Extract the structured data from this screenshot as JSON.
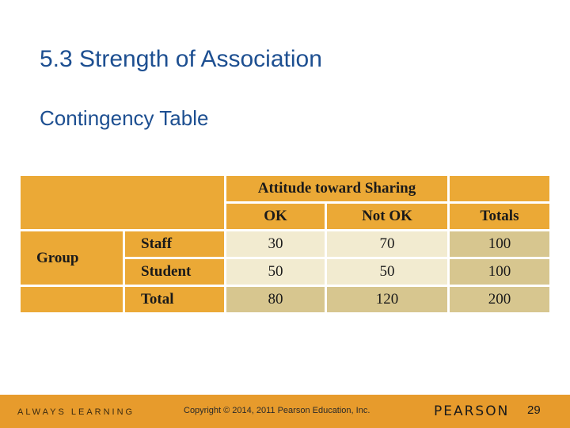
{
  "slide": {
    "title": "5.3 Strength of Association",
    "subtitle": "Contingency Table"
  },
  "table": {
    "spanning_header": "Attitude toward Sharing",
    "columns": [
      "OK",
      "Not OK",
      "Totals"
    ],
    "group_label": "Group",
    "rows": [
      {
        "label": "Staff",
        "values": [
          "30",
          "70",
          "100"
        ]
      },
      {
        "label": "Student",
        "values": [
          "50",
          "50",
          "100"
        ]
      },
      {
        "label": "Total",
        "values": [
          "80",
          "120",
          "200"
        ]
      }
    ]
  },
  "footer": {
    "tagline": "ALWAYS LEARNING",
    "copyright": "Copyright © 2014, 2011 Pearson Education, Inc.",
    "brand": "PEARSON",
    "page_number": "29"
  },
  "colors": {
    "title": "#1d4f91",
    "header_fill": "#eba936",
    "cell_fill": "#f2ebd0",
    "total_fill": "#d7c68f",
    "footer_bar": "#e79b2c"
  }
}
